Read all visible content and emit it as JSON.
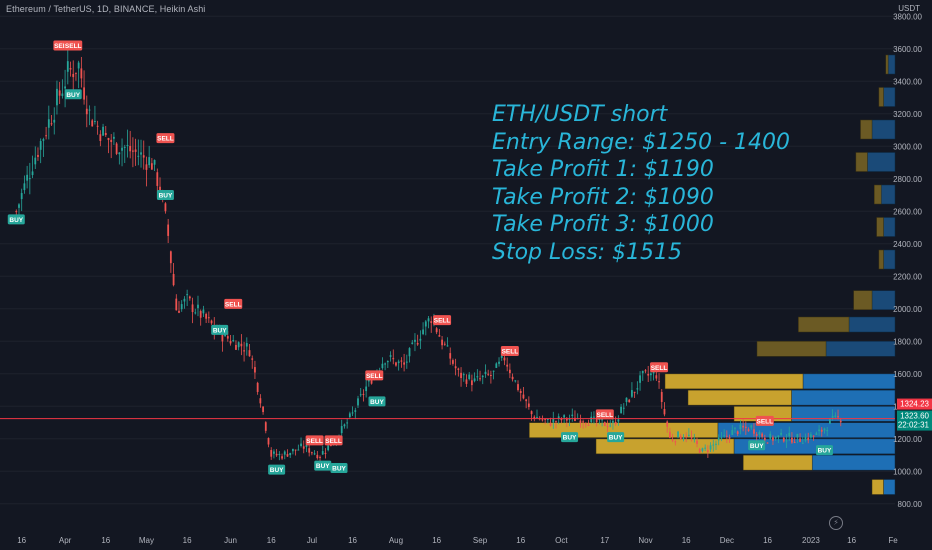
{
  "header": {
    "symbol_line": "Ethereum / TetherUS, 1D, BINANCE, Heikin Ashi"
  },
  "overlay_text": {
    "line1": "ETH/USDT short",
    "line2": "Entry Range: $1250 - 1400",
    "line3": "Take Profit 1: $1190",
    "line4": "Take Profit 2: $1090",
    "line5": "Take Profit 3: $1000",
    "line6": "Stop Loss: $1515"
  },
  "price_axis": {
    "currency": "USDT",
    "ticks": [
      "3800.00",
      "3600.00",
      "3400.00",
      "3200.00",
      "3000.00",
      "2800.00",
      "2600.00",
      "2400.00",
      "2200.00",
      "2000.00",
      "1800.00",
      "1600.00",
      "1400.00",
      "1200.00",
      "1000.00",
      "800.00"
    ],
    "last_price_label": "1324.23",
    "second_price_label": "1323.60",
    "countdown": "22:02:31"
  },
  "time_axis": [
    "16",
    "Apr",
    "16",
    "May",
    "16",
    "Jun",
    "16",
    "Jul",
    "16",
    "Aug",
    "16",
    "Sep",
    "16",
    "Oct",
    "17",
    "Nov",
    "16",
    "Dec",
    "16",
    "2023",
    "16",
    "Fe"
  ],
  "colors": {
    "background": "#131722",
    "up": "#26a69a",
    "down": "#ef5350",
    "overlay_text": "#29b6d9",
    "price_line": "#f23645",
    "buy_label": "#26a69a",
    "sell_label": "#ef5350",
    "vp_gold": "#c8a22e",
    "vp_blue": "#1e6fb5"
  },
  "chart_data": {
    "type": "candlestick",
    "title": "Ethereum / TetherUS, 1D, BINANCE, Heikin Ashi",
    "xlabel": "",
    "ylabel": "USDT",
    "ylim": [
      700,
      3900
    ],
    "path_points": [
      [
        "2022-03-14",
        2600
      ],
      [
        "2022-03-20",
        2900
      ],
      [
        "2022-03-26",
        3150
      ],
      [
        "2022-04-02",
        3450
      ],
      [
        "2022-04-06",
        3500
      ],
      [
        "2022-04-10",
        3200
      ],
      [
        "2022-04-16",
        3050
      ],
      [
        "2022-04-22",
        3000
      ],
      [
        "2022-04-28",
        2950
      ],
      [
        "2022-05-03",
        2900
      ],
      [
        "2022-05-06",
        2750
      ],
      [
        "2022-05-09",
        2450
      ],
      [
        "2022-05-12",
        2000
      ],
      [
        "2022-05-16",
        2050
      ],
      [
        "2022-05-22",
        1950
      ],
      [
        "2022-05-28",
        1850
      ],
      [
        "2022-06-02",
        1800
      ],
      [
        "2022-06-08",
        1750
      ],
      [
        "2022-06-12",
        1450
      ],
      [
        "2022-06-16",
        1100
      ],
      [
        "2022-06-20",
        1100
      ],
      [
        "2022-06-28",
        1150
      ],
      [
        "2022-07-04",
        1100
      ],
      [
        "2022-07-10",
        1200
      ],
      [
        "2022-07-16",
        1350
      ],
      [
        "2022-07-22",
        1550
      ],
      [
        "2022-07-28",
        1700
      ],
      [
        "2022-08-04",
        1650
      ],
      [
        "2022-08-10",
        1850
      ],
      [
        "2022-08-14",
        1950
      ],
      [
        "2022-08-18",
        1800
      ],
      [
        "2022-08-24",
        1600
      ],
      [
        "2022-08-30",
        1550
      ],
      [
        "2022-09-06",
        1600
      ],
      [
        "2022-09-10",
        1700
      ],
      [
        "2022-09-14",
        1550
      ],
      [
        "2022-09-20",
        1350
      ],
      [
        "2022-09-26",
        1300
      ],
      [
        "2022-10-02",
        1320
      ],
      [
        "2022-10-08",
        1330
      ],
      [
        "2022-10-14",
        1300
      ],
      [
        "2022-10-20",
        1290
      ],
      [
        "2022-10-26",
        1450
      ],
      [
        "2022-10-31",
        1580
      ],
      [
        "2022-11-05",
        1600
      ],
      [
        "2022-11-08",
        1350
      ],
      [
        "2022-11-10",
        1200
      ],
      [
        "2022-11-16",
        1230
      ],
      [
        "2022-11-22",
        1120
      ],
      [
        "2022-11-28",
        1180
      ],
      [
        "2022-12-04",
        1250
      ],
      [
        "2022-12-10",
        1270
      ],
      [
        "2022-12-16",
        1200
      ],
      [
        "2022-12-22",
        1210
      ],
      [
        "2022-12-28",
        1200
      ],
      [
        "2023-01-03",
        1220
      ],
      [
        "2023-01-08",
        1300
      ],
      [
        "2023-01-12",
        1330
      ]
    ],
    "signals": [
      {
        "label": "BUY",
        "date": "2022-03-14",
        "price": 2550
      },
      {
        "label": "SELL",
        "date": "2022-03-31",
        "price": 3620
      },
      {
        "label": "SELL",
        "date": "2022-04-04",
        "price": 3620
      },
      {
        "label": "BUY",
        "date": "2022-04-04",
        "price": 3320
      },
      {
        "label": "SELL",
        "date": "2022-05-08",
        "price": 3050
      },
      {
        "label": "BUY",
        "date": "2022-05-08",
        "price": 2700
      },
      {
        "label": "SELL",
        "date": "2022-06-02",
        "price": 2030
      },
      {
        "label": "BUY",
        "date": "2022-05-28",
        "price": 1870
      },
      {
        "label": "BUY",
        "date": "2022-06-18",
        "price": 1010
      },
      {
        "label": "SELL",
        "date": "2022-07-02",
        "price": 1190
      },
      {
        "label": "BUY",
        "date": "2022-07-05",
        "price": 1035
      },
      {
        "label": "SELL",
        "date": "2022-07-09",
        "price": 1190
      },
      {
        "label": "BUY",
        "date": "2022-07-11",
        "price": 1020
      },
      {
        "label": "SELL",
        "date": "2022-07-24",
        "price": 1590
      },
      {
        "label": "BUY",
        "date": "2022-07-25",
        "price": 1430
      },
      {
        "label": "SELL",
        "date": "2022-08-18",
        "price": 1930
      },
      {
        "label": "SELL",
        "date": "2022-09-12",
        "price": 1740
      },
      {
        "label": "BUY",
        "date": "2022-10-04",
        "price": 1210
      },
      {
        "label": "SELL",
        "date": "2022-10-17",
        "price": 1350
      },
      {
        "label": "BUY",
        "date": "2022-10-21",
        "price": 1210
      },
      {
        "label": "SELL",
        "date": "2022-11-06",
        "price": 1640
      },
      {
        "label": "SELL",
        "date": "2022-12-15",
        "price": 1310
      },
      {
        "label": "BUY",
        "date": "2022-12-12",
        "price": 1160
      },
      {
        "label": "BUY",
        "date": "2023-01-06",
        "price": 1130
      }
    ],
    "last_price": 1324.23,
    "volume_profile": [
      {
        "price": 3500,
        "gold": 0.01,
        "blue": 0.03
      },
      {
        "price": 3300,
        "gold": 0.02,
        "blue": 0.05
      },
      {
        "price": 3100,
        "gold": 0.05,
        "blue": 0.1
      },
      {
        "price": 2900,
        "gold": 0.05,
        "blue": 0.12
      },
      {
        "price": 2700,
        "gold": 0.03,
        "blue": 0.06
      },
      {
        "price": 2500,
        "gold": 0.03,
        "blue": 0.05
      },
      {
        "price": 2300,
        "gold": 0.02,
        "blue": 0.05
      },
      {
        "price": 2050,
        "gold": 0.08,
        "blue": 0.1
      },
      {
        "price": 1900,
        "gold": 0.22,
        "blue": 0.2
      },
      {
        "price": 1750,
        "gold": 0.3,
        "blue": 0.3
      },
      {
        "price": 1550,
        "gold": 0.6,
        "blue": 0.4
      },
      {
        "price": 1450,
        "gold": 0.45,
        "blue": 0.45
      },
      {
        "price": 1350,
        "gold": 0.25,
        "blue": 0.45
      },
      {
        "price": 1250,
        "gold": 0.82,
        "blue": 0.77
      },
      {
        "price": 1150,
        "gold": 0.6,
        "blue": 0.7
      },
      {
        "price": 1050,
        "gold": 0.3,
        "blue": 0.36
      },
      {
        "price": 900,
        "gold": 0.05,
        "blue": 0.05
      }
    ]
  }
}
